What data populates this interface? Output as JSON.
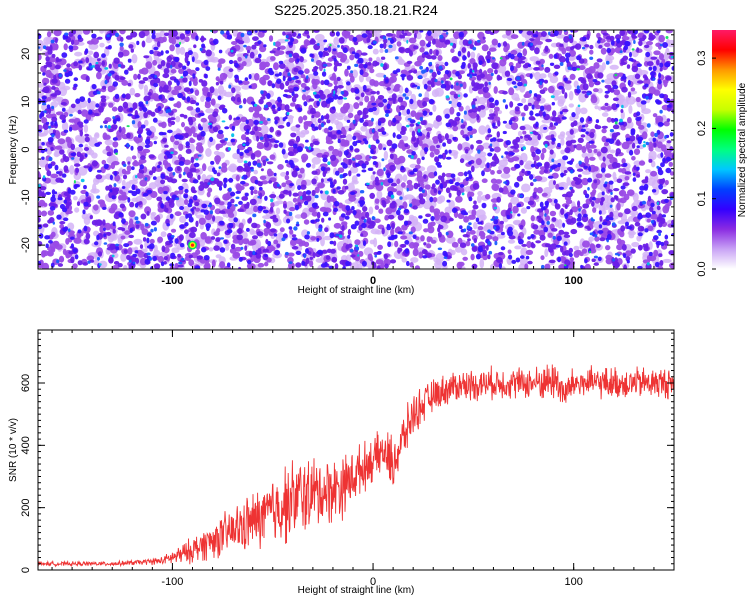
{
  "title": "S225.2025.350.18.21.R24",
  "chart_data": [
    {
      "type": "heatmap",
      "xlabel": "Height of straight line (km)",
      "ylabel": "Frequency (Hz)",
      "xlim": [
        -167,
        150
      ],
      "ylim": [
        -25,
        25
      ],
      "xticks": [
        -100,
        0,
        100
      ],
      "yticks": [
        -20,
        -10,
        0,
        10,
        20
      ],
      "colorbar": {
        "label": "Normalized spectral amplitude",
        "range": [
          0.0,
          0.34
        ],
        "ticks": [
          0.0,
          0.1,
          0.2,
          0.3
        ],
        "colors": [
          "#ffffff",
          "#c9a3f5",
          "#8a2be2",
          "#3300ff",
          "#0040ff",
          "#00c8ff",
          "#00ff80",
          "#00ff00",
          "#c8ff00",
          "#ffff00",
          "#ff9900",
          "#ff0000",
          "#ff1a66"
        ]
      },
      "features": [
        {
          "label": "peak",
          "x": -90,
          "y": -20,
          "value": 0.3
        }
      ]
    },
    {
      "type": "line",
      "xlabel": "Height of straight line (km)",
      "ylabel": "SNR (10 * v/v)",
      "xlim": [
        -167,
        150
      ],
      "ylim": [
        0,
        770
      ],
      "xticks": [
        -100,
        0,
        100
      ],
      "yticks": [
        0,
        200,
        400,
        600
      ],
      "color": "#ee3333",
      "series": [
        {
          "name": "SNR",
          "x": [
            -167,
            -150,
            -130,
            -115,
            -105,
            -95,
            -85,
            -75,
            -65,
            -55,
            -45,
            -35,
            -25,
            -15,
            -5,
            5,
            10,
            15,
            20,
            30,
            40,
            60,
            80,
            92,
            95,
            100,
            120,
            150
          ],
          "values": [
            20,
            20,
            20,
            25,
            30,
            50,
            80,
            110,
            140,
            170,
            210,
            240,
            250,
            270,
            330,
            380,
            340,
            420,
            500,
            560,
            590,
            600,
            600,
            610,
            560,
            600,
            600,
            600
          ],
          "spread": [
            8,
            8,
            8,
            10,
            15,
            40,
            60,
            80,
            100,
            120,
            150,
            150,
            130,
            120,
            90,
            80,
            110,
            90,
            80,
            60,
            60,
            60,
            60,
            80,
            70,
            60,
            60,
            60
          ]
        }
      ]
    }
  ]
}
